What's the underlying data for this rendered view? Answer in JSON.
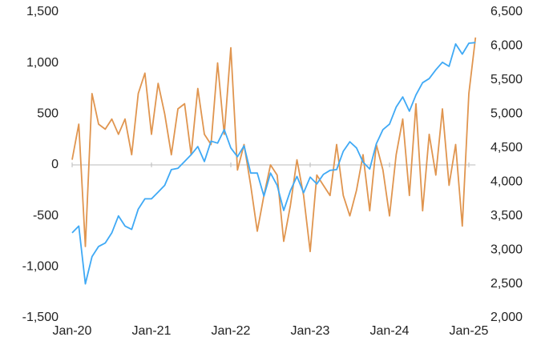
{
  "chart_data": {
    "type": "line",
    "x": [
      "2020-01",
      "2020-02",
      "2020-03",
      "2020-04",
      "2020-05",
      "2020-06",
      "2020-07",
      "2020-08",
      "2020-09",
      "2020-10",
      "2020-11",
      "2020-12",
      "2021-01",
      "2021-02",
      "2021-03",
      "2021-04",
      "2021-05",
      "2021-06",
      "2021-07",
      "2021-08",
      "2021-09",
      "2021-10",
      "2021-11",
      "2021-12",
      "2022-01",
      "2022-02",
      "2022-03",
      "2022-04",
      "2022-05",
      "2022-06",
      "2022-07",
      "2022-08",
      "2022-09",
      "2022-10",
      "2022-11",
      "2022-12",
      "2023-01",
      "2023-02",
      "2023-03",
      "2023-04",
      "2023-05",
      "2023-06",
      "2023-07",
      "2023-08",
      "2023-09",
      "2023-10",
      "2023-11",
      "2023-12",
      "2024-01",
      "2024-02",
      "2024-03",
      "2024-04",
      "2024-05",
      "2024-06",
      "2024-07",
      "2024-08",
      "2024-09",
      "2024-10",
      "2024-11",
      "2024-12",
      "2025-01",
      "2025-02"
    ],
    "xlim": [
      "2020-01",
      "2025-02"
    ],
    "xticks": [
      {
        "value": "2020-01",
        "label": "Jan-20"
      },
      {
        "value": "2021-01",
        "label": "Jan-21"
      },
      {
        "value": "2022-01",
        "label": "Jan-22"
      },
      {
        "value": "2023-01",
        "label": "Jan-23"
      },
      {
        "value": "2024-01",
        "label": "Jan-24"
      },
      {
        "value": "2025-01",
        "label": "Jan-25"
      }
    ],
    "ylim": [
      -1500,
      1500
    ],
    "yticks": [
      {
        "value": -1500,
        "label": "-1,500"
      },
      {
        "value": -1000,
        "label": "-1,000"
      },
      -500,
      0,
      500,
      {
        "value": 1000,
        "label": "1,000"
      },
      {
        "value": 1500,
        "label": "1,500"
      }
    ],
    "y2lim": [
      2000,
      6500
    ],
    "y2ticks": [
      {
        "value": 2000,
        "label": "2,000"
      },
      {
        "value": 2500,
        "label": "2,500"
      },
      {
        "value": 3000,
        "label": "3,000"
      },
      {
        "value": 3500,
        "label": "3,500"
      },
      {
        "value": 4000,
        "label": "4,000"
      },
      {
        "value": 4500,
        "label": "4,500"
      },
      {
        "value": 5000,
        "label": "5,000"
      },
      {
        "value": 5500,
        "label": "5,500"
      },
      {
        "value": 6000,
        "label": "6,000"
      },
      {
        "value": 6500,
        "label": "6,500"
      }
    ],
    "series": [
      {
        "color": "#e0954f",
        "values": [
          50,
          400,
          -800,
          700,
          400,
          350,
          450,
          300,
          450,
          100,
          700,
          900,
          300,
          800,
          500,
          100,
          550,
          600,
          100,
          750,
          300,
          200,
          1000,
          300,
          1150,
          -50,
          200,
          -200,
          -650,
          -300,
          0,
          -100,
          -750,
          -400,
          50,
          -300,
          -850,
          -100,
          -200,
          -300,
          200,
          -300,
          -500,
          -250,
          100,
          -450,
          200,
          -50,
          -500,
          100,
          450,
          -300,
          600,
          -450,
          300,
          -100,
          550,
          -200,
          200,
          -600,
          700,
          1250
        ]
      },
      {
        "color": "#3fa9f5",
        "axis": "y2",
        "values": [
          3250,
          3350,
          2500,
          2900,
          3050,
          3100,
          3250,
          3500,
          3350,
          3300,
          3600,
          3750,
          3750,
          3850,
          3950,
          4180,
          4200,
          4300,
          4400,
          4520,
          4300,
          4600,
          4570,
          4770,
          4500,
          4370,
          4530,
          4130,
          4130,
          3790,
          4130,
          3950,
          3580,
          3870,
          4080,
          3840,
          4070,
          3970,
          4110,
          4170,
          4180,
          4450,
          4590,
          4500,
          4290,
          4190,
          4560,
          4770,
          4850,
          5100,
          5250,
          5040,
          5280,
          5460,
          5520,
          5650,
          5760,
          5700,
          6030,
          5880,
          6040,
          6050
        ]
      }
    ]
  }
}
